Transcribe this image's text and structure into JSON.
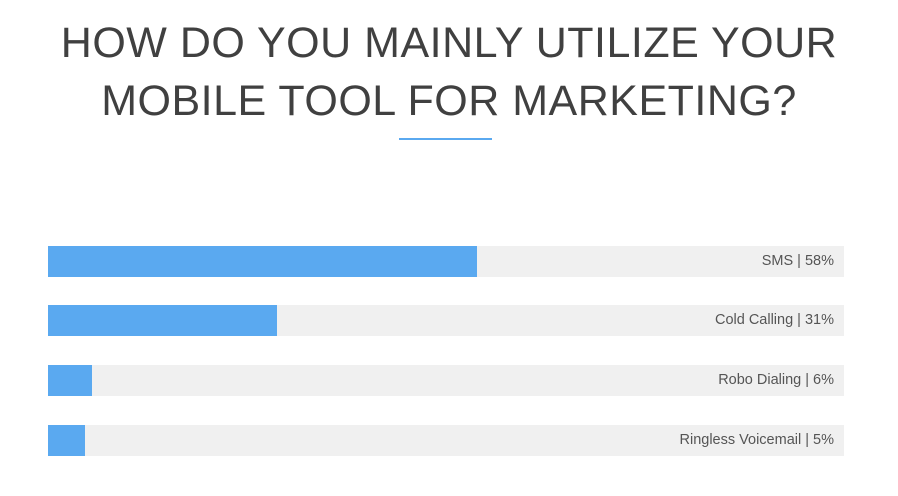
{
  "title": {
    "line1": "HOW DO YOU MAINLY UTILIZE YOUR",
    "line2": "MOBILE TOOL FOR MARKETING?"
  },
  "colors": {
    "accent": "#5aa9f0",
    "track": "#f0f0f0",
    "title": "#404040",
    "label": "#555555"
  },
  "chart_data": {
    "type": "bar",
    "orientation": "horizontal",
    "title": "HOW DO YOU MAINLY UTILIZE YOUR MOBILE TOOL FOR MARKETING?",
    "xlim": [
      0,
      100
    ],
    "grid": false,
    "bars": [
      {
        "category": "SMS",
        "value": 58,
        "label": "SMS | 58%"
      },
      {
        "category": "Cold Calling",
        "value": 31,
        "label": "Cold Calling | 31%"
      },
      {
        "category": "Robo Dialing",
        "value": 6,
        "label": "Robo Dialing | 6%"
      },
      {
        "category": "Ringless Voicemail",
        "value": 5,
        "label": "Ringless Voicemail | 5%"
      }
    ]
  }
}
